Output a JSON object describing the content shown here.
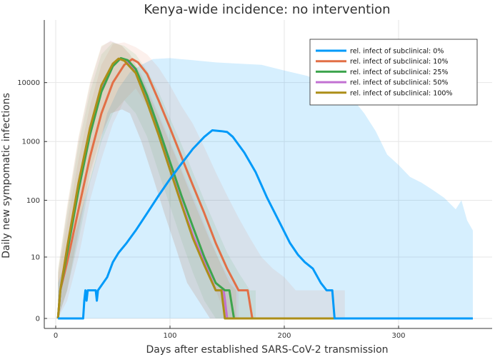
{
  "chart_data": {
    "type": "line",
    "title": "Kenya-wide incidence: no intervention",
    "xlabel": "Days after established SARS-CoV-2 transmission",
    "ylabel": "Daily new sympomatic infections",
    "y_scale": "log1p",
    "xlim": [
      0,
      370
    ],
    "ylim": [
      0,
      40000
    ],
    "x_ticks": [
      0,
      100,
      200,
      300
    ],
    "y_ticks": [
      0,
      10,
      100,
      1000,
      10000
    ],
    "y_tick_labels": [
      "0",
      "10",
      "100",
      "1000",
      "10000"
    ],
    "grid": true,
    "legend_position": "top-right",
    "series": [
      {
        "name": "rel. infect of subclinical: 0%",
        "color": "#009af9",
        "line": [
          [
            2,
            0
          ],
          [
            24,
            0
          ],
          [
            25,
            1
          ],
          [
            26,
            2
          ],
          [
            27,
            1
          ],
          [
            28,
            2
          ],
          [
            30,
            2
          ],
          [
            35,
            2
          ],
          [
            36,
            1
          ],
          [
            37,
            2
          ],
          [
            45,
            4
          ],
          [
            50,
            8
          ],
          [
            55,
            12
          ],
          [
            62,
            18
          ],
          [
            70,
            30
          ],
          [
            80,
            60
          ],
          [
            90,
            120
          ],
          [
            100,
            230
          ],
          [
            110,
            420
          ],
          [
            120,
            750
          ],
          [
            130,
            1200
          ],
          [
            137,
            1550
          ],
          [
            145,
            1500
          ],
          [
            150,
            1450
          ],
          [
            155,
            1200
          ],
          [
            165,
            650
          ],
          [
            175,
            300
          ],
          [
            185,
            110
          ],
          [
            195,
            45
          ],
          [
            205,
            18
          ],
          [
            212,
            11
          ],
          [
            218,
            8
          ],
          [
            225,
            6
          ],
          [
            232,
            3
          ],
          [
            237,
            2
          ],
          [
            242,
            2
          ],
          [
            244,
            0
          ],
          [
            365,
            0
          ]
        ],
        "band": [
          [
            2,
            0,
            3
          ],
          [
            15,
            0,
            20
          ],
          [
            25,
            0,
            100
          ],
          [
            35,
            0,
            500
          ],
          [
            45,
            0,
            3000
          ],
          [
            55,
            0,
            8000
          ],
          [
            65,
            0,
            15000
          ],
          [
            75,
            0,
            20000
          ],
          [
            85,
            0,
            25000
          ],
          [
            100,
            0,
            26000
          ],
          [
            120,
            0,
            24000
          ],
          [
            140,
            0,
            22000
          ],
          [
            160,
            0,
            21000
          ],
          [
            180,
            0,
            20000
          ],
          [
            200,
            0,
            16000
          ],
          [
            220,
            0,
            13000
          ],
          [
            240,
            0,
            9000
          ],
          [
            255,
            0,
            7000
          ],
          [
            270,
            0,
            3000
          ],
          [
            280,
            0,
            1500
          ],
          [
            290,
            0,
            600
          ],
          [
            300,
            0,
            400
          ],
          [
            310,
            0,
            250
          ],
          [
            320,
            0,
            200
          ],
          [
            330,
            0,
            150
          ],
          [
            340,
            0,
            110
          ],
          [
            350,
            0,
            70
          ],
          [
            355,
            0,
            100
          ],
          [
            360,
            0,
            45
          ],
          [
            365,
            0,
            30
          ]
        ]
      },
      {
        "name": "rel. infect of subclinical: 10%",
        "color": "#e26f46",
        "line": [
          [
            2,
            0
          ],
          [
            4,
            2
          ],
          [
            10,
            8
          ],
          [
            20,
            70
          ],
          [
            30,
            550
          ],
          [
            40,
            3000
          ],
          [
            50,
            10000
          ],
          [
            60,
            20000
          ],
          [
            67,
            25000
          ],
          [
            72,
            22000
          ],
          [
            80,
            14000
          ],
          [
            90,
            5000
          ],
          [
            100,
            1700
          ],
          [
            110,
            550
          ],
          [
            120,
            180
          ],
          [
            130,
            60
          ],
          [
            140,
            18
          ],
          [
            150,
            6
          ],
          [
            160,
            2
          ],
          [
            168,
            2
          ],
          [
            172,
            0
          ],
          [
            365,
            0
          ]
        ],
        "band": [
          [
            2,
            0,
            4
          ],
          [
            10,
            1,
            40
          ],
          [
            20,
            10,
            500
          ],
          [
            30,
            100,
            4000
          ],
          [
            40,
            500,
            20000
          ],
          [
            50,
            2000,
            45000
          ],
          [
            60,
            5000,
            48000
          ],
          [
            70,
            8000,
            40000
          ],
          [
            80,
            4000,
            30000
          ],
          [
            90,
            1500,
            18000
          ],
          [
            100,
            400,
            9000
          ],
          [
            110,
            120,
            4000
          ],
          [
            120,
            30,
            2000
          ],
          [
            130,
            8,
            800
          ],
          [
            140,
            2,
            300
          ],
          [
            150,
            0,
            120
          ],
          [
            160,
            0,
            50
          ],
          [
            170,
            0,
            22
          ],
          [
            180,
            0,
            10
          ],
          [
            190,
            0,
            6
          ],
          [
            200,
            0,
            4
          ],
          [
            210,
            0,
            2
          ],
          [
            220,
            0,
            2
          ],
          [
            230,
            0,
            2
          ],
          [
            240,
            0,
            2
          ],
          [
            250,
            0,
            2
          ],
          [
            253,
            0,
            2
          ]
        ]
      },
      {
        "name": "rel. infect of subclinical: 25%",
        "color": "#3da44d",
        "line": [
          [
            2,
            0
          ],
          [
            4,
            2
          ],
          [
            10,
            12
          ],
          [
            20,
            150
          ],
          [
            30,
            1300
          ],
          [
            40,
            7000
          ],
          [
            50,
            19000
          ],
          [
            57,
            26000
          ],
          [
            63,
            24000
          ],
          [
            70,
            17000
          ],
          [
            80,
            6000
          ],
          [
            90,
            1700
          ],
          [
            100,
            450
          ],
          [
            110,
            120
          ],
          [
            120,
            35
          ],
          [
            130,
            10
          ],
          [
            140,
            3
          ],
          [
            148,
            2
          ],
          [
            152,
            2
          ],
          [
            156,
            0
          ],
          [
            365,
            0
          ]
        ],
        "band": [
          [
            2,
            0,
            5
          ],
          [
            10,
            2,
            60
          ],
          [
            20,
            20,
            900
          ],
          [
            30,
            200,
            7000
          ],
          [
            40,
            1000,
            30000
          ],
          [
            50,
            3000,
            48000
          ],
          [
            60,
            5000,
            42000
          ],
          [
            70,
            3000,
            30000
          ],
          [
            80,
            1200,
            16000
          ],
          [
            90,
            300,
            7000
          ],
          [
            100,
            80,
            2500
          ],
          [
            110,
            20,
            900
          ],
          [
            120,
            5,
            300
          ],
          [
            130,
            1,
            100
          ],
          [
            140,
            0,
            35
          ],
          [
            150,
            0,
            12
          ],
          [
            160,
            0,
            5
          ],
          [
            170,
            0,
            2
          ],
          [
            175,
            0,
            2
          ]
        ]
      },
      {
        "name": "rel. infect of subclinical: 50%",
        "color": "#c271d2",
        "line": [
          [
            2,
            0
          ],
          [
            4,
            2
          ],
          [
            10,
            14
          ],
          [
            20,
            180
          ],
          [
            30,
            1500
          ],
          [
            40,
            8000
          ],
          [
            50,
            20000
          ],
          [
            56,
            25500
          ],
          [
            62,
            23000
          ],
          [
            70,
            15000
          ],
          [
            80,
            5000
          ],
          [
            90,
            1400
          ],
          [
            100,
            350
          ],
          [
            110,
            90
          ],
          [
            120,
            25
          ],
          [
            130,
            8
          ],
          [
            140,
            2
          ],
          [
            147,
            2
          ],
          [
            150,
            0
          ],
          [
            365,
            0
          ]
        ],
        "band": [
          [
            2,
            0,
            5
          ],
          [
            10,
            2,
            70
          ],
          [
            20,
            25,
            1100
          ],
          [
            30,
            250,
            9000
          ],
          [
            40,
            1200,
            40000
          ],
          [
            48,
            3000,
            52000
          ],
          [
            58,
            3500,
            42000
          ],
          [
            65,
            3000,
            30000
          ],
          [
            75,
            1000,
            14000
          ],
          [
            85,
            250,
            5000
          ],
          [
            95,
            60,
            1800
          ],
          [
            105,
            15,
            600
          ],
          [
            115,
            3,
            200
          ],
          [
            125,
            1,
            70
          ],
          [
            135,
            0,
            22
          ],
          [
            145,
            0,
            7
          ],
          [
            155,
            0,
            3
          ],
          [
            160,
            0,
            2
          ]
        ]
      },
      {
        "name": "rel. infect of subclinical: 100%",
        "color": "#ac8e18",
        "line": [
          [
            2,
            0
          ],
          [
            4,
            2
          ],
          [
            10,
            15
          ],
          [
            20,
            200
          ],
          [
            30,
            1700
          ],
          [
            40,
            9000
          ],
          [
            50,
            21000
          ],
          [
            55,
            25500
          ],
          [
            60,
            23500
          ],
          [
            70,
            14500
          ],
          [
            80,
            4600
          ],
          [
            90,
            1300
          ],
          [
            100,
            330
          ],
          [
            110,
            85
          ],
          [
            120,
            22
          ],
          [
            130,
            7
          ],
          [
            140,
            2
          ],
          [
            145,
            2
          ],
          [
            148,
            0
          ],
          [
            365,
            0
          ]
        ],
        "band": [
          [
            2,
            0,
            6
          ],
          [
            10,
            2,
            80
          ],
          [
            20,
            30,
            1200
          ],
          [
            30,
            300,
            10000
          ],
          [
            40,
            1300,
            42000
          ],
          [
            48,
            3000,
            50000
          ],
          [
            58,
            3500,
            42000
          ],
          [
            65,
            3000,
            30000
          ],
          [
            75,
            1000,
            13000
          ],
          [
            85,
            250,
            4500
          ],
          [
            95,
            60,
            1600
          ],
          [
            105,
            15,
            550
          ],
          [
            115,
            3,
            180
          ],
          [
            125,
            1,
            60
          ],
          [
            135,
            0,
            20
          ],
          [
            145,
            0,
            7
          ],
          [
            152,
            0,
            3
          ],
          [
            158,
            0,
            2
          ]
        ]
      }
    ]
  }
}
